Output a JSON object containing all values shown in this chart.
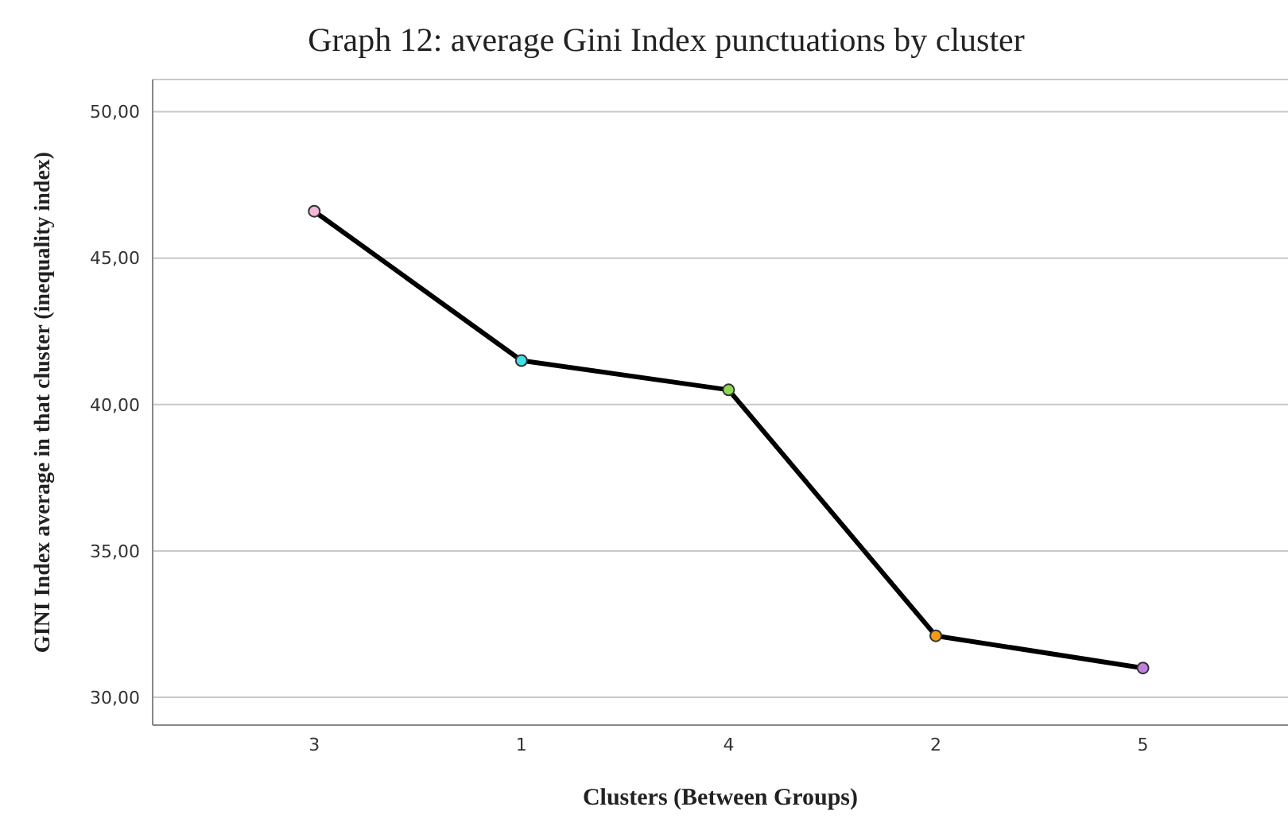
{
  "chart_data": {
    "type": "line",
    "title": "Graph 12: average Gini Index punctuations by cluster",
    "xlabel": "Clusters (Between Groups)",
    "ylabel": "GINI Index average in that cluster (inequality index)",
    "categories": [
      "3",
      "1",
      "4",
      "2",
      "5"
    ],
    "series": [
      {
        "color": "#000000",
        "values": [
          46.6,
          41.5,
          40.5,
          32.1,
          31.0
        ]
      }
    ],
    "colors": [
      "#f4b8d8",
      "#40e0e8",
      "#90d850",
      "#f39c12",
      "#c080e0"
    ],
    "ylim": [
      29.05,
      51.1
    ],
    "yticks": [
      {
        "value": 30,
        "label": "30,00"
      },
      {
        "value": 35,
        "label": "35,00"
      },
      {
        "value": 40,
        "label": "40,00"
      },
      {
        "value": 45,
        "label": "45,00"
      },
      {
        "value": 50,
        "label": "50,00"
      }
    ],
    "grid": "y",
    "legend": false,
    "marker": "circle",
    "line_style": "solid"
  }
}
